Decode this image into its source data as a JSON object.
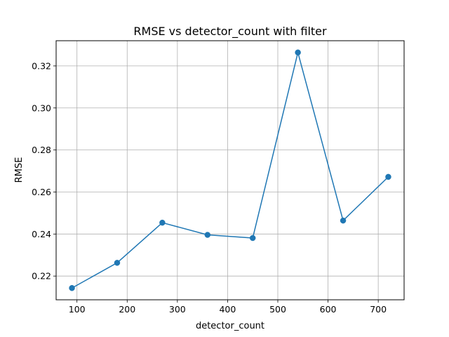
{
  "chart_data": {
    "type": "line",
    "title": "RMSE vs detector_count with filter",
    "xlabel": "detector_count",
    "ylabel": "RMSE",
    "x": [
      90,
      180,
      270,
      360,
      450,
      540,
      630,
      720
    ],
    "series": [
      {
        "values": [
          0.2143,
          0.2263,
          0.2454,
          0.2396,
          0.2381,
          0.3264,
          0.2464,
          0.2672
        ]
      }
    ],
    "xlim": [
      58.5,
      751.5
    ],
    "ylim": [
      0.2087,
      0.332
    ],
    "xticks": [
      100,
      200,
      300,
      400,
      500,
      600,
      700
    ],
    "yticks": [
      0.22,
      0.24,
      0.26,
      0.28,
      0.3,
      0.32
    ],
    "ytick_labels": [
      "0.22",
      "0.24",
      "0.26",
      "0.28",
      "0.30",
      "0.32"
    ],
    "grid": true,
    "line_color": "#1f77b4",
    "marker": "circle"
  }
}
